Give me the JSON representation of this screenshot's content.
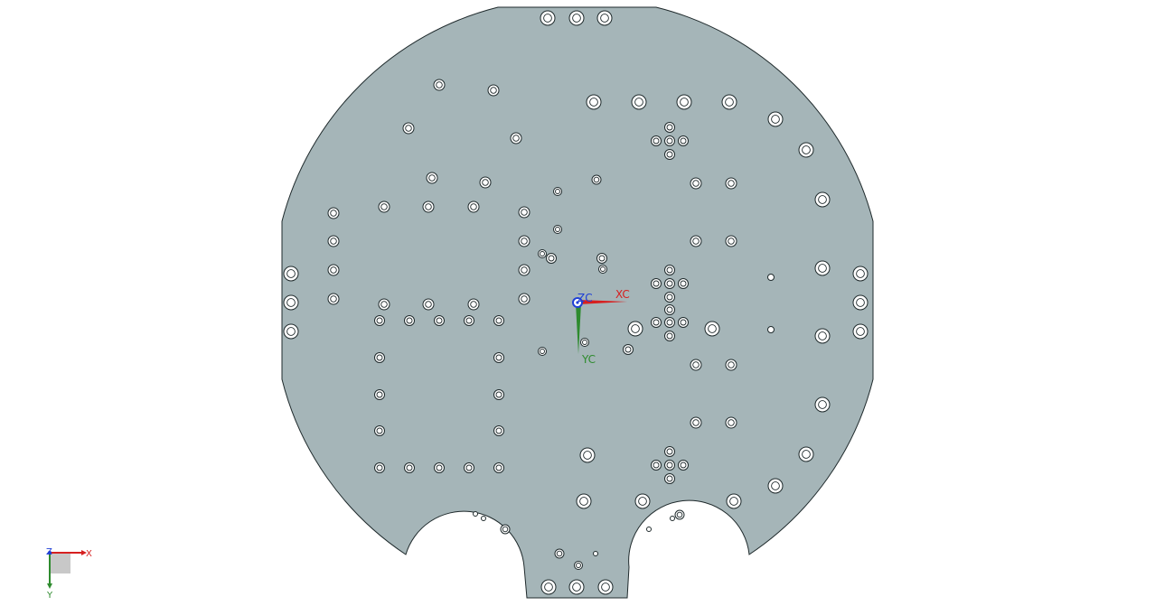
{
  "colors": {
    "background": "#ffffff",
    "plate_fill": "#a5b5b8",
    "plate_stroke": "#1f2a2c",
    "hole_fill": "#ffffff",
    "x_axis": "#d62020",
    "y_axis": "#2e8b2e",
    "z_axis": "#1f3fd6",
    "triad_plane": "#c8c8c8"
  },
  "wcs": {
    "x_label": "XC",
    "y_label": "YC",
    "z_label": "ZC"
  },
  "view_triad": {
    "x_label": "X",
    "y_label": "Y",
    "z_label": "Z"
  },
  "icons": {
    "wcs": "wcs-coordinate-icon",
    "triad": "view-triad-icon"
  }
}
